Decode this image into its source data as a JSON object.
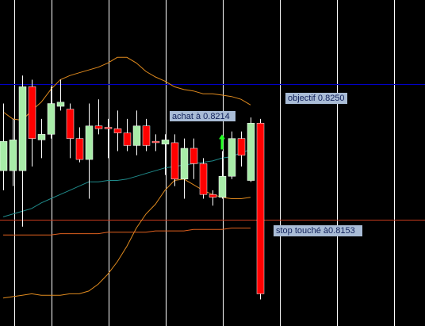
{
  "chart_data": {
    "type": "candlestick",
    "ylim": [
      0.8077,
      0.831
    ],
    "up_color": "#a8eca8",
    "down_color": "#ff0000",
    "wick_color": "#ffffff",
    "open": [
      0.8188,
      0.8188,
      0.8188,
      0.8248,
      0.821,
      0.8214,
      0.8234,
      0.8232,
      0.8211,
      0.8196,
      0.822,
      0.8219,
      0.8218,
      0.8215,
      0.8206,
      0.822,
      0.8209,
      0.8207,
      0.8208,
      0.8182,
      0.8204,
      0.8193,
      0.8171,
      0.8169,
      0.8184,
      0.8211,
      0.8181,
      0.8222
    ],
    "high": [
      0.8236,
      0.8225,
      0.8256,
      0.8253,
      0.8225,
      0.8248,
      0.8253,
      0.8236,
      0.8219,
      0.8236,
      0.8239,
      0.8225,
      0.8231,
      0.8225,
      0.8231,
      0.8225,
      0.8214,
      0.8214,
      0.8214,
      0.8211,
      0.8211,
      0.8197,
      0.8174,
      0.8202,
      0.8216,
      0.8216,
      0.8226,
      0.8225
    ],
    "low": [
      0.8174,
      0.8177,
      0.8148,
      0.8191,
      0.8197,
      0.8211,
      0.8231,
      0.8197,
      0.8194,
      0.8168,
      0.8214,
      0.8197,
      0.8202,
      0.8202,
      0.8199,
      0.8202,
      0.8202,
      0.8185,
      0.8177,
      0.8168,
      0.8182,
      0.8168,
      0.8163,
      0.8168,
      0.8182,
      0.8191,
      0.818,
      0.8096
    ],
    "close": [
      0.8209,
      0.821,
      0.8248,
      0.8211,
      0.8214,
      0.8236,
      0.8237,
      0.8211,
      0.8196,
      0.822,
      0.8218,
      0.8218,
      0.8215,
      0.8206,
      0.822,
      0.8206,
      0.8208,
      0.821,
      0.8182,
      0.8204,
      0.8193,
      0.8171,
      0.8169,
      0.8184,
      0.8211,
      0.8199,
      0.8222,
      0.81
    ],
    "overlays": [
      {
        "color": "#e08a1e",
        "values": [
          0.823,
          0.8225,
          0.8224,
          0.8231,
          0.8237,
          0.8246,
          0.8253,
          0.8256,
          0.8258,
          0.826,
          0.8262,
          0.8265,
          0.8269,
          0.8269,
          0.8265,
          0.8259,
          0.8255,
          0.8252,
          0.8248,
          0.8246,
          0.8245,
          0.8243,
          0.8243,
          0.8242,
          0.8241,
          0.8239,
          0.8235,
          null
        ]
      },
      {
        "color": "#e08a1e",
        "values": [
          0.8097,
          0.8098,
          0.8099,
          0.81,
          0.8099,
          0.8099,
          0.8099,
          0.81,
          0.81,
          0.8102,
          0.8107,
          0.8114,
          0.8123,
          0.8134,
          0.8147,
          0.8157,
          0.8164,
          0.8174,
          0.8181,
          0.8182,
          0.8178,
          0.8174,
          0.8171,
          0.8169,
          0.8168,
          0.8168,
          0.8169,
          null
        ]
      },
      {
        "color": "#1f8a8a",
        "values": [
          0.8155,
          0.8157,
          0.8159,
          0.8161,
          0.8165,
          0.8168,
          0.8171,
          0.8174,
          0.8177,
          0.818,
          0.818,
          0.8181,
          0.8181,
          0.8182,
          0.8184,
          0.8186,
          0.8188,
          0.819,
          0.8191,
          0.8192,
          0.8193,
          0.8194,
          0.8195,
          0.8197,
          0.8198,
          0.8201,
          0.8203,
          null
        ]
      },
      {
        "color": "#e0601e",
        "values": [
          0.8142,
          0.8142,
          0.8142,
          0.8142,
          0.8142,
          0.8142,
          0.8143,
          0.8143,
          0.8143,
          0.8143,
          0.8143,
          0.8144,
          0.8144,
          0.8144,
          0.8144,
          0.8144,
          0.8145,
          0.8145,
          0.8145,
          0.8145,
          0.8146,
          0.8146,
          0.8146,
          0.8146,
          0.8147,
          0.8147,
          0.8147,
          null
        ]
      }
    ],
    "levels": [
      {
        "label": "objectif 0.8250",
        "value": 0.825,
        "color": "#0000c8"
      },
      {
        "label": "stop touché à0.8153",
        "value": 0.8153,
        "color": "#c83c1e"
      }
    ],
    "annotation": {
      "label": "achat à 0.8214",
      "value": 0.8214,
      "color": "#22ff22"
    }
  }
}
